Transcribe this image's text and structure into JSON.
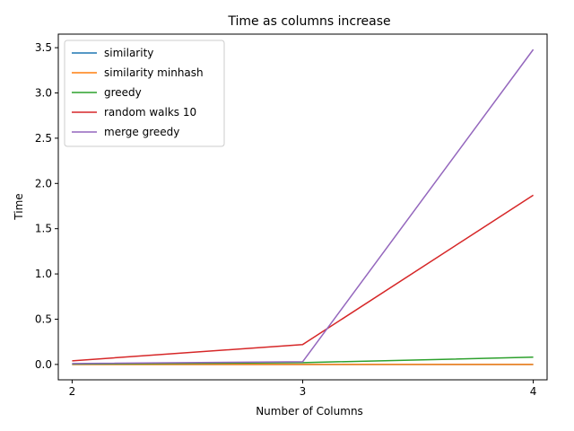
{
  "chart_data": {
    "type": "line",
    "title": "Time as columns increase",
    "xlabel": "Number of Columns",
    "ylabel": "Time",
    "x": [
      2,
      3,
      4
    ],
    "xticks": [
      "2",
      "3",
      "4"
    ],
    "yticks": [
      "0.0",
      "0.5",
      "1.0",
      "1.5",
      "2.0",
      "2.5",
      "3.0",
      "3.5"
    ],
    "ylim": [
      -0.17,
      3.65
    ],
    "xlim": [
      1.94,
      4.06
    ],
    "grid": false,
    "legend_position": "upper-left",
    "series": [
      {
        "name": "similarity",
        "color": "#1f77b4",
        "values": [
          0.0,
          0.0,
          0.0
        ]
      },
      {
        "name": "similarity minhash",
        "color": "#ff7f0e",
        "values": [
          0.0,
          0.0,
          0.0
        ]
      },
      {
        "name": "greedy",
        "color": "#2ca02c",
        "values": [
          0.005,
          0.02,
          0.08
        ]
      },
      {
        "name": "random walks 10",
        "color": "#d62728",
        "values": [
          0.04,
          0.22,
          1.87
        ]
      },
      {
        "name": "merge greedy",
        "color": "#9467bd",
        "values": [
          0.01,
          0.03,
          3.48
        ]
      }
    ]
  }
}
